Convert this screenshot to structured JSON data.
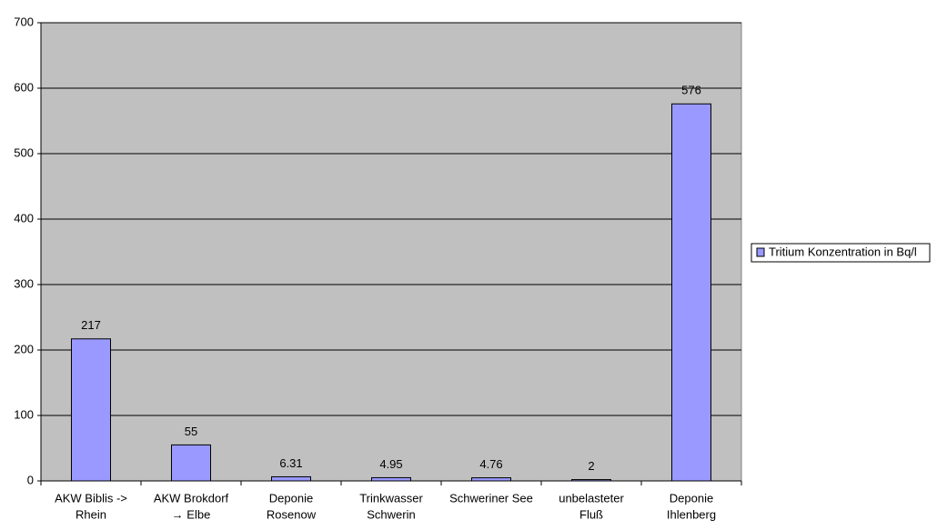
{
  "chart_data": {
    "type": "bar",
    "categories": [
      [
        "AKW Biblis ->",
        "Rhein"
      ],
      [
        "AKW Brokdorf",
        "→ Elbe"
      ],
      [
        "Deponie",
        "Rosenow"
      ],
      [
        "Trinkwasser",
        "Schwerin"
      ],
      [
        "Schweriner See"
      ],
      [
        "unbelasteter",
        "Fluß"
      ],
      [
        "Deponie",
        "Ihlenberg"
      ]
    ],
    "series": [
      {
        "name": "Tritium Konzentration in Bq/l",
        "color": "#9999ff",
        "values": [
          217,
          55,
          6.31,
          4.95,
          4.76,
          2,
          576
        ]
      }
    ],
    "ylim": [
      0,
      700
    ],
    "yticks": [
      0,
      100,
      200,
      300,
      400,
      500,
      600,
      700
    ],
    "grid": true,
    "legend": "right"
  }
}
